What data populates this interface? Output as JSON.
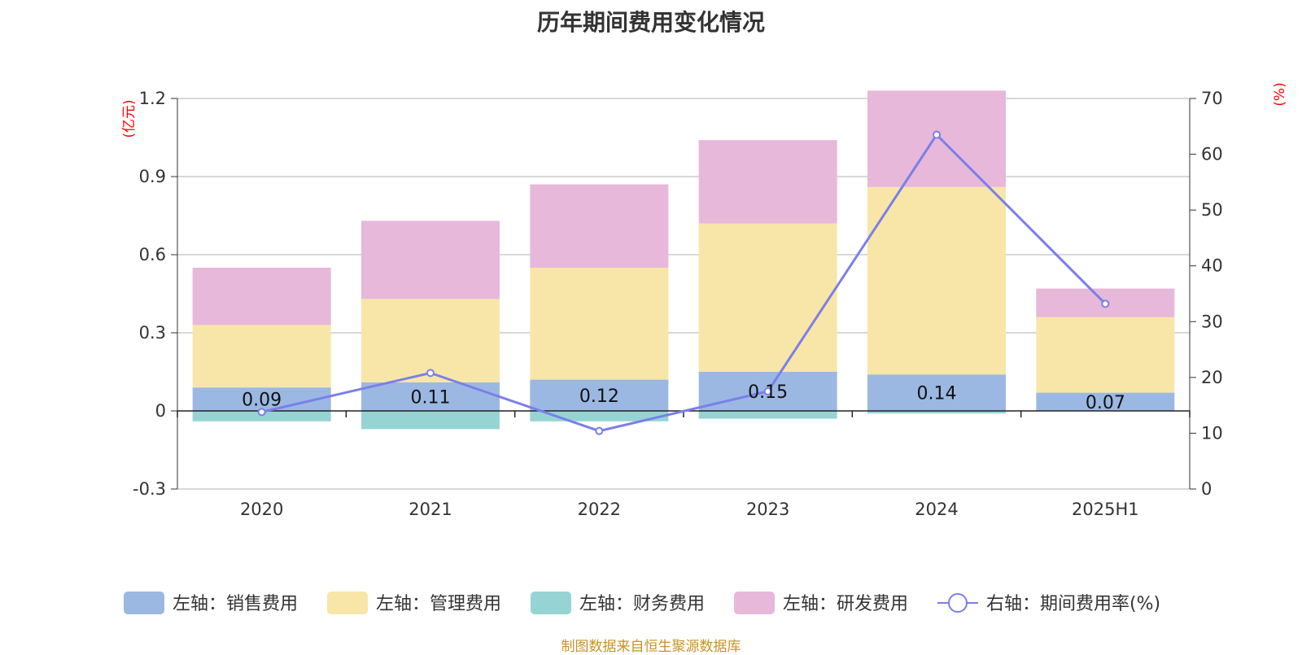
{
  "chart_data": {
    "type": "bar",
    "title": "历年期间费用变化情况",
    "categories": [
      "2020",
      "2021",
      "2022",
      "2023",
      "2024",
      "2025H1"
    ],
    "left_axis": {
      "unit": "(亿元)",
      "ylim": [
        -0.3,
        1.2
      ],
      "ticks": [
        "-0.3",
        "0",
        "0.3",
        "0.6",
        "0.9",
        "1.2"
      ]
    },
    "right_axis": {
      "unit": "(%)",
      "ylim": [
        0,
        70
      ],
      "ticks": [
        "0",
        "10",
        "20",
        "30",
        "40",
        "50",
        "60",
        "70"
      ]
    },
    "series": [
      {
        "name": "左轴：销售费用",
        "axis": "left",
        "color": "#9bb8e2",
        "values": [
          0.09,
          0.11,
          0.12,
          0.15,
          0.14,
          0.07
        ],
        "labels": [
          "0.09",
          "0.11",
          "0.12",
          "0.15",
          "0.14",
          "0.07"
        ]
      },
      {
        "name": "左轴：管理费用",
        "axis": "left",
        "color": "#f8e6a8",
        "values": [
          0.24,
          0.32,
          0.43,
          0.57,
          0.72,
          0.29
        ]
      },
      {
        "name": "左轴：财务费用",
        "axis": "left",
        "color": "#96d4d4",
        "values": [
          -0.04,
          -0.07,
          -0.04,
          -0.03,
          -0.01,
          0
        ]
      },
      {
        "name": "左轴：研发费用",
        "axis": "left",
        "color": "#e7b8d9",
        "values": [
          0.22,
          0.3,
          0.32,
          0.32,
          0.37,
          0.11
        ]
      },
      {
        "name": "右轴：期间费用率(%)",
        "axis": "right",
        "type": "line",
        "color": "#7b7fe8",
        "values": [
          13.8,
          20.8,
          10.4,
          17.5,
          63.5,
          33.2
        ]
      }
    ],
    "grid": true,
    "legend_position": "bottom",
    "source": "制图数据来自恒生聚源数据库"
  }
}
